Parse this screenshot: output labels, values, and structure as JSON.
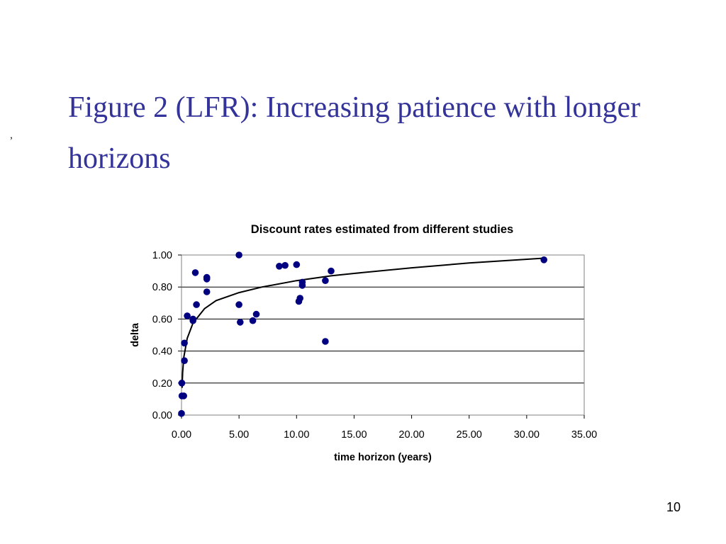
{
  "slide": {
    "title": "Figure 2 (LFR): Increasing patience with longer horizons",
    "stray_mark": ",",
    "slide_number": "10"
  },
  "colors": {
    "title": "#333399",
    "marker": "#000080",
    "curve": "#000000",
    "grid": "#000000"
  },
  "chart_data": {
    "type": "scatter",
    "title": "Discount rates estimated from different studies",
    "xlabel": "time horizon (years)",
    "ylabel": "delta",
    "xlim": [
      0,
      35
    ],
    "ylim": [
      0,
      1
    ],
    "x_ticks": [
      "0.00",
      "5.00",
      "10.00",
      "15.00",
      "20.00",
      "25.00",
      "30.00",
      "35.00"
    ],
    "y_ticks": [
      "0.00",
      "0.20",
      "0.40",
      "0.60",
      "0.80",
      "1.00"
    ],
    "grid": "horizontal",
    "legend": "none",
    "series": [
      {
        "points": [
          [
            0.0,
            0.01
          ],
          [
            0.03,
            0.2
          ],
          [
            0.04,
            0.12
          ],
          [
            0.2,
            0.12
          ],
          [
            0.25,
            0.34
          ],
          [
            0.25,
            0.45
          ],
          [
            0.5,
            0.62
          ],
          [
            1.0,
            0.6
          ],
          [
            1.0,
            0.59
          ],
          [
            1.2,
            0.89
          ],
          [
            1.3,
            0.69
          ],
          [
            2.2,
            0.85
          ],
          [
            2.2,
            0.86
          ],
          [
            2.2,
            0.77
          ],
          [
            5.0,
            1.0
          ],
          [
            5.0,
            0.69
          ],
          [
            5.1,
            0.58
          ],
          [
            6.2,
            0.59
          ],
          [
            6.5,
            0.63
          ],
          [
            8.5,
            0.93
          ],
          [
            9.0,
            0.935
          ],
          [
            10.0,
            0.94
          ],
          [
            10.2,
            0.71
          ],
          [
            10.3,
            0.73
          ],
          [
            10.5,
            0.81
          ],
          [
            10.5,
            0.83
          ],
          [
            12.5,
            0.84
          ],
          [
            12.5,
            0.46
          ],
          [
            13.0,
            0.9
          ],
          [
            31.5,
            0.97
          ]
        ]
      }
    ],
    "trendline": {
      "type": "logarithmic",
      "points": [
        [
          0.05,
          0.17
        ],
        [
          0.1,
          0.265
        ],
        [
          0.2,
          0.36
        ],
        [
          0.5,
          0.48
        ],
        [
          1,
          0.575
        ],
        [
          2,
          0.665
        ],
        [
          3,
          0.715
        ],
        [
          5,
          0.765
        ],
        [
          7,
          0.8
        ],
        [
          10,
          0.84
        ],
        [
          13,
          0.87
        ],
        [
          15,
          0.885
        ],
        [
          20,
          0.92
        ],
        [
          25,
          0.95
        ],
        [
          31.5,
          0.98
        ]
      ]
    }
  }
}
